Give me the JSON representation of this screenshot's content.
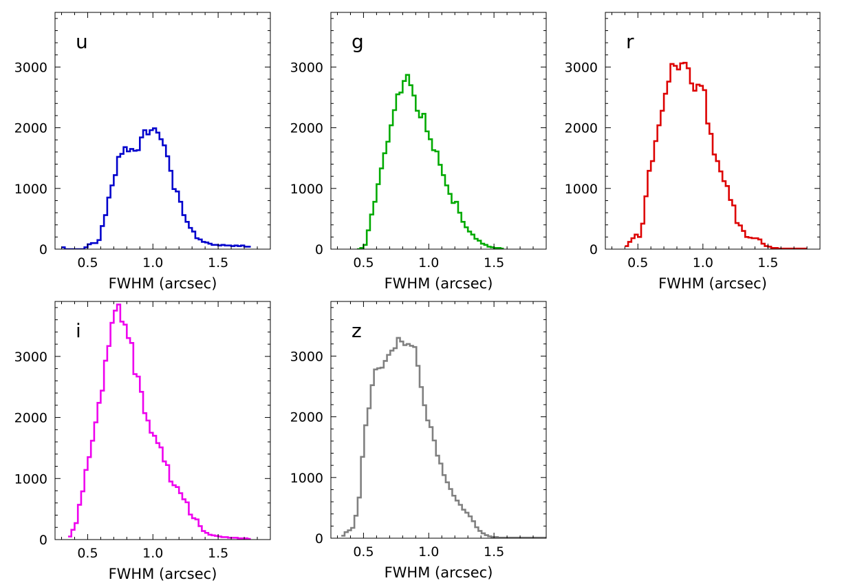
{
  "chart_data": [
    {
      "type": "histogram",
      "label": "u",
      "color": "#0000cc",
      "xlabel": "FWHM (arcsec)",
      "ylabel": "",
      "xlim": [
        0.25,
        1.9
      ],
      "ylim": [
        0,
        3900
      ],
      "xticks": [
        "0.5",
        "1.0",
        "1.5"
      ],
      "yticks": [
        "0",
        "1000",
        "2000",
        "3000"
      ],
      "bin_width": 0.025,
      "x_start": 0.3,
      "values": [
        30,
        0,
        0,
        0,
        0,
        0,
        0,
        30,
        80,
        100,
        100,
        150,
        380,
        560,
        850,
        1050,
        1220,
        1520,
        1570,
        1680,
        1610,
        1650,
        1620,
        1630,
        1840,
        1960,
        1890,
        1960,
        1990,
        1920,
        1810,
        1710,
        1530,
        1290,
        990,
        950,
        780,
        560,
        450,
        350,
        290,
        180,
        160,
        120,
        110,
        90,
        70,
        70,
        60,
        70,
        60,
        60,
        50,
        60,
        50,
        60,
        40,
        40
      ]
    },
    {
      "type": "histogram",
      "label": "g",
      "color": "#00aa00",
      "xlabel": "FWHM (arcsec)",
      "ylabel": "",
      "xlim": [
        0.25,
        1.9
      ],
      "ylim": [
        0,
        3900
      ],
      "xticks": [
        "0.5",
        "1.0",
        "1.5"
      ],
      "yticks": [
        "0",
        "1000",
        "2000",
        "3000"
      ],
      "bin_width": 0.025,
      "x_start": 0.45,
      "values": [
        0,
        20,
        70,
        310,
        570,
        780,
        1070,
        1330,
        1580,
        1770,
        2040,
        2290,
        2550,
        2580,
        2770,
        2870,
        2700,
        2530,
        2280,
        2170,
        2230,
        1940,
        1810,
        1630,
        1610,
        1390,
        1220,
        1050,
        910,
        760,
        780,
        600,
        450,
        360,
        290,
        240,
        170,
        140,
        90,
        70,
        40,
        30,
        20,
        20,
        10
      ]
    },
    {
      "type": "histogram",
      "label": "r",
      "color": "#dd0000",
      "xlabel": "FWHM (arcsec)",
      "ylabel": "",
      "xlim": [
        0.25,
        1.9
      ],
      "ylim": [
        0,
        3900
      ],
      "xticks": [
        "0.5",
        "1.0",
        "1.5"
      ],
      "yticks": [
        "0",
        "1000",
        "2000",
        "3000"
      ],
      "bin_width": 0.025,
      "x_start": 0.4,
      "values": [
        50,
        120,
        180,
        240,
        200,
        420,
        870,
        1290,
        1450,
        1780,
        2040,
        2280,
        2560,
        2760,
        3050,
        3020,
        2960,
        3060,
        3070,
        2980,
        2730,
        2610,
        2710,
        2690,
        2620,
        2070,
        1900,
        1560,
        1450,
        1280,
        1120,
        1040,
        810,
        720,
        430,
        390,
        300,
        200,
        190,
        180,
        180,
        160,
        90,
        50,
        40,
        20,
        20,
        10,
        10,
        10,
        10,
        10,
        10,
        10,
        10,
        10
      ]
    },
    {
      "type": "histogram",
      "label": "i",
      "color": "#ee00ee",
      "xlabel": "FWHM (arcsec)",
      "ylabel": "",
      "xlim": [
        0.25,
        1.9
      ],
      "ylim": [
        0,
        3900
      ],
      "xticks": [
        "0.5",
        "1.0",
        "1.5"
      ],
      "yticks": [
        "0",
        "1000",
        "2000",
        "3000"
      ],
      "bin_width": 0.025,
      "x_start": 0.35,
      "values": [
        50,
        160,
        270,
        570,
        790,
        1140,
        1350,
        1620,
        1920,
        2240,
        2440,
        2930,
        3170,
        3550,
        3750,
        3850,
        3570,
        3520,
        3300,
        3220,
        2710,
        2670,
        2420,
        2070,
        1950,
        1750,
        1700,
        1580,
        1510,
        1280,
        1220,
        950,
        890,
        860,
        760,
        660,
        610,
        410,
        350,
        330,
        220,
        140,
        110,
        80,
        70,
        60,
        50,
        40,
        40,
        30,
        30,
        30,
        20,
        20,
        20,
        10
      ]
    },
    {
      "type": "histogram",
      "label": "z",
      "color": "#808080",
      "xlabel": "FWHM (arcsec)",
      "ylabel": "",
      "xlim": [
        0.25,
        1.9
      ],
      "ylim": [
        0,
        3900
      ],
      "xticks": [
        "0.5",
        "1.0",
        "1.5"
      ],
      "yticks": [
        "0",
        "1000",
        "2000",
        "3000"
      ],
      "bin_width": 0.025,
      "x_start": 0.33,
      "values": [
        40,
        100,
        130,
        170,
        370,
        670,
        1340,
        1860,
        2140,
        2520,
        2780,
        2800,
        2810,
        2920,
        3020,
        3090,
        3130,
        3300,
        3240,
        3180,
        3200,
        3170,
        3150,
        2840,
        2490,
        2190,
        1940,
        1830,
        1610,
        1360,
        1230,
        1040,
        920,
        810,
        700,
        620,
        550,
        470,
        420,
        360,
        280,
        180,
        120,
        80,
        50,
        30,
        20,
        20,
        10,
        10,
        10,
        10,
        10,
        10,
        10,
        10,
        10,
        10,
        10,
        10,
        10,
        10,
        10,
        10
      ]
    }
  ]
}
